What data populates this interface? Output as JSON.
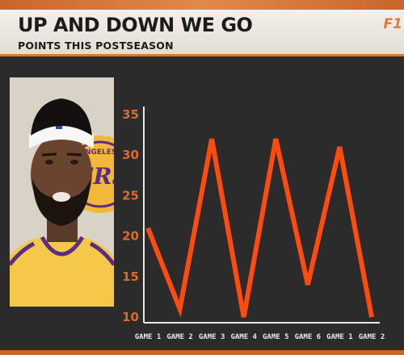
{
  "header": {
    "title": "UP AND DOWN WE GO",
    "subtitle": "POINTS THIS POSTSEASON",
    "logo_text": "F1"
  },
  "photo": {
    "jersey_text": "ERS",
    "patch_text": "ANGELES"
  },
  "colors": {
    "line": "#ff4a10",
    "axis_labels": "#e0692a",
    "background": "#2b2b2b",
    "header_bg": "#f0ebe4"
  },
  "chart_data": {
    "type": "line",
    "title": "",
    "xlabel": "",
    "ylabel": "",
    "categories": [
      "GAME 1",
      "GAME 2",
      "GAME 3",
      "GAME 4",
      "GAME 5",
      "GAME 6",
      "GAME 1",
      "GAME 2"
    ],
    "yticks": [
      10,
      15,
      20,
      25,
      30,
      35
    ],
    "ylim": [
      9.5,
      36
    ],
    "series": [
      {
        "values": [
          21,
          11,
          32,
          10,
          32,
          14,
          31,
          10
        ]
      }
    ],
    "grid": false,
    "legend": "none"
  }
}
